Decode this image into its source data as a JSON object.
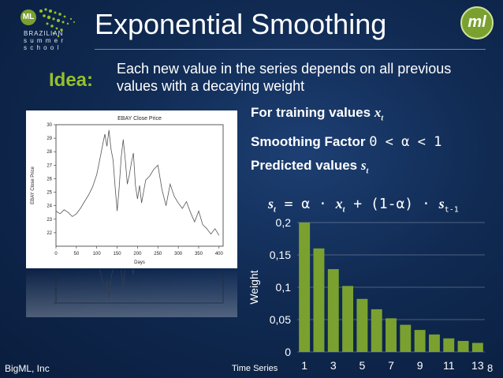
{
  "header": {
    "title": "Exponential Smoothing",
    "logo_left": {
      "badge": "ML",
      "lines": [
        "BRAZILIAN",
        "s u m m e r",
        "s c h o o l"
      ]
    },
    "logo_right": "ml"
  },
  "idea": {
    "label": "Idea:",
    "text": "Each new value in the series depends on all previous values with a decaying weight"
  },
  "points": {
    "training_label": "For training values",
    "training_symbol": "x",
    "training_sub": "t",
    "smoothing_label": "Smoothing Factor",
    "smoothing_expr": "0 < α < 1",
    "predicted_label": "Predicted values",
    "predicted_symbol": "s",
    "predicted_sub": "t"
  },
  "formula": {
    "lhs": "s",
    "lhs_sub": "t",
    "eq": " = α · ",
    "x": "x",
    "x_sub": "t",
    "rest": " + (1-α) · ",
    "s2": "s",
    "s2_sub": "t-1"
  },
  "footer": {
    "left": "BigML, Inc",
    "center": "Time Series",
    "page": "8"
  },
  "colors": {
    "accent": "#95c12b",
    "bar": "#7aa12f",
    "background": "#102a52"
  },
  "chart_data": [
    {
      "type": "line",
      "title": "EBAY Close Price",
      "xlabel": "Days",
      "ylabel": "EBAY Close Price",
      "xlim": [
        0,
        410
      ],
      "ylim": [
        21,
        30
      ],
      "xticks": [
        0,
        50,
        100,
        150,
        200,
        250,
        300,
        350,
        400
      ],
      "yticks": [
        22,
        23,
        24,
        25,
        26,
        27,
        28,
        29,
        30
      ],
      "series": [
        {
          "x": [
            0,
            10,
            20,
            30,
            40,
            50,
            60,
            70,
            80,
            90,
            100,
            110,
            115,
            120,
            125,
            130,
            135,
            140,
            145,
            150,
            155,
            160,
            165,
            170,
            175,
            180,
            185,
            190,
            195,
            200,
            205,
            210,
            220,
            230,
            240,
            250,
            260,
            270,
            280,
            290,
            300,
            310,
            320,
            330,
            340,
            350,
            360,
            370,
            380,
            390,
            400
          ],
          "y": [
            23.6,
            23.4,
            23.7,
            23.5,
            23.2,
            23.4,
            23.8,
            24.3,
            24.8,
            25.4,
            26.3,
            27.8,
            28.6,
            29.3,
            28.4,
            29.6,
            28.2,
            27.4,
            25.4,
            23.6,
            25.3,
            27.6,
            28.9,
            27.4,
            25.6,
            26.3,
            27.2,
            27.9,
            25.5,
            24.5,
            25.5,
            24.2,
            25.9,
            26.2,
            26.7,
            27.0,
            25.2,
            24.0,
            25.6,
            24.7,
            24.2,
            23.8,
            24.3,
            23.5,
            22.8,
            23.6,
            22.6,
            22.3,
            21.9,
            22.3,
            21.8
          ]
        }
      ]
    },
    {
      "type": "bar",
      "categories": [
        1,
        2,
        3,
        4,
        5,
        6,
        7,
        8,
        9,
        10,
        11,
        12,
        13
      ],
      "xticks": [
        1,
        3,
        5,
        7,
        9,
        11,
        13
      ],
      "values": [
        0.2,
        0.16,
        0.128,
        0.102,
        0.082,
        0.066,
        0.052,
        0.042,
        0.034,
        0.027,
        0.021,
        0.017,
        0.014
      ],
      "ylabel": "Weight",
      "ylim": [
        0,
        0.2
      ],
      "yticks": [
        "0",
        "0,05",
        "0,1",
        "0,15",
        "0,2"
      ],
      "grid": true
    }
  ]
}
